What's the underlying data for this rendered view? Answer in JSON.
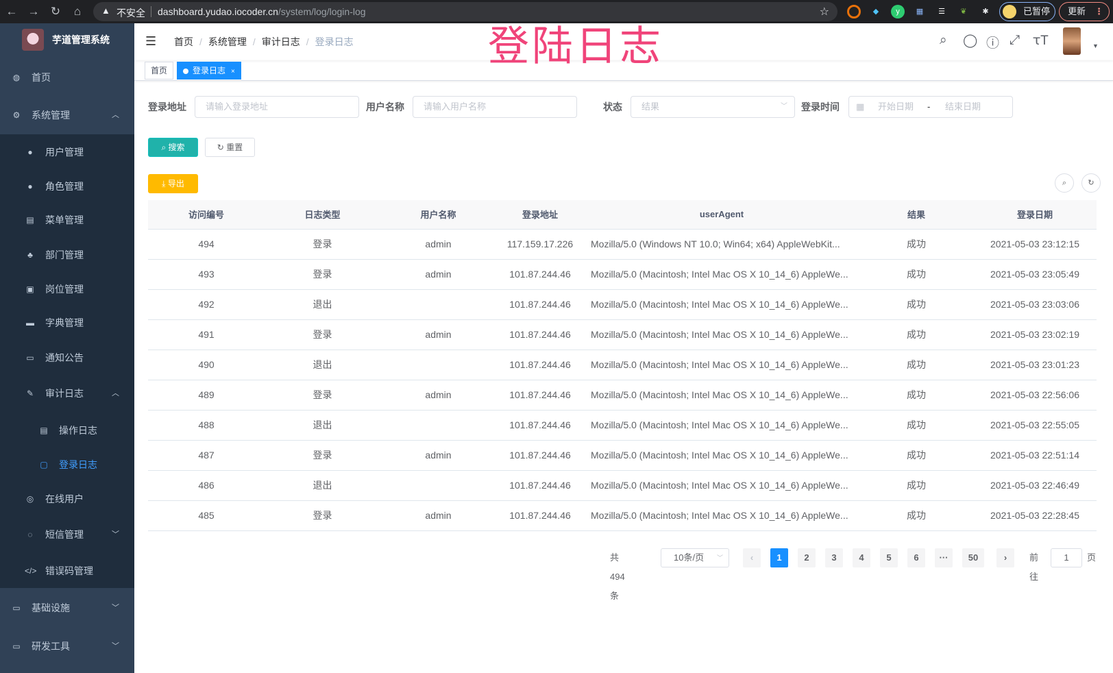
{
  "browser": {
    "insecure_label": "不安全",
    "url_host": "dashboard.yudao.iocoder.cn",
    "url_path": "/system/log/login-log",
    "paused_label": "已暂停",
    "update_label": "更新"
  },
  "app": {
    "title": "芋道管理系统"
  },
  "sidebar": {
    "items": [
      {
        "label": "首页",
        "icon": "dashboard-icon"
      },
      {
        "label": "系统管理",
        "icon": "gear-icon"
      },
      {
        "label": "用户管理",
        "icon": "user-icon"
      },
      {
        "label": "角色管理",
        "icon": "peoples-icon"
      },
      {
        "label": "菜单管理",
        "icon": "tree-table-icon"
      },
      {
        "label": "部门管理",
        "icon": "tree-icon"
      },
      {
        "label": "岗位管理",
        "icon": "post-icon"
      },
      {
        "label": "字典管理",
        "icon": "dict-icon"
      },
      {
        "label": "通知公告",
        "icon": "message-icon"
      },
      {
        "label": "审计日志",
        "icon": "log-icon"
      },
      {
        "label": "操作日志",
        "icon": "form-icon"
      },
      {
        "label": "登录日志",
        "icon": "logininfor-icon"
      },
      {
        "label": "在线用户",
        "icon": "online-icon"
      },
      {
        "label": "短信管理",
        "icon": "validCode-icon"
      },
      {
        "label": "错误码管理",
        "icon": "code-icon"
      },
      {
        "label": "基础设施",
        "icon": "monitor-icon"
      },
      {
        "label": "研发工具",
        "icon": "tool-icon"
      }
    ]
  },
  "breadcrumb": [
    "首页",
    "系统管理",
    "审计日志",
    "登录日志"
  ],
  "overlay_title": "登陆日志",
  "tags": [
    "首页",
    "登录日志"
  ],
  "filters": {
    "address_label": "登录地址",
    "address_placeholder": "请输入登录地址",
    "username_label": "用户名称",
    "username_placeholder": "请输入用户名称",
    "status_label": "状态",
    "status_placeholder": "结果",
    "time_label": "登录时间",
    "start_placeholder": "开始日期",
    "range_sep": "-",
    "end_placeholder": "结束日期"
  },
  "buttons": {
    "search": "搜索",
    "reset": "重置",
    "export": "导出"
  },
  "table": {
    "columns": [
      "访问编号",
      "日志类型",
      "用户名称",
      "登录地址",
      "userAgent",
      "结果",
      "登录日期"
    ],
    "rows": [
      [
        "494",
        "登录",
        "admin",
        "117.159.17.226",
        "Mozilla/5.0 (Windows NT 10.0; Win64; x64) AppleWebKit...",
        "成功",
        "2021-05-03 23:12:15"
      ],
      [
        "493",
        "登录",
        "admin",
        "101.87.244.46",
        "Mozilla/5.0 (Macintosh; Intel Mac OS X 10_14_6) AppleWe...",
        "成功",
        "2021-05-03 23:05:49"
      ],
      [
        "492",
        "退出",
        "",
        "101.87.244.46",
        "Mozilla/5.0 (Macintosh; Intel Mac OS X 10_14_6) AppleWe...",
        "成功",
        "2021-05-03 23:03:06"
      ],
      [
        "491",
        "登录",
        "admin",
        "101.87.244.46",
        "Mozilla/5.0 (Macintosh; Intel Mac OS X 10_14_6) AppleWe...",
        "成功",
        "2021-05-03 23:02:19"
      ],
      [
        "490",
        "退出",
        "",
        "101.87.244.46",
        "Mozilla/5.0 (Macintosh; Intel Mac OS X 10_14_6) AppleWe...",
        "成功",
        "2021-05-03 23:01:23"
      ],
      [
        "489",
        "登录",
        "admin",
        "101.87.244.46",
        "Mozilla/5.0 (Macintosh; Intel Mac OS X 10_14_6) AppleWe...",
        "成功",
        "2021-05-03 22:56:06"
      ],
      [
        "488",
        "退出",
        "",
        "101.87.244.46",
        "Mozilla/5.0 (Macintosh; Intel Mac OS X 10_14_6) AppleWe...",
        "成功",
        "2021-05-03 22:55:05"
      ],
      [
        "487",
        "登录",
        "admin",
        "101.87.244.46",
        "Mozilla/5.0 (Macintosh; Intel Mac OS X 10_14_6) AppleWe...",
        "成功",
        "2021-05-03 22:51:14"
      ],
      [
        "486",
        "退出",
        "",
        "101.87.244.46",
        "Mozilla/5.0 (Macintosh; Intel Mac OS X 10_14_6) AppleWe...",
        "成功",
        "2021-05-03 22:46:49"
      ],
      [
        "485",
        "登录",
        "admin",
        "101.87.244.46",
        "Mozilla/5.0 (Macintosh; Intel Mac OS X 10_14_6) AppleWe...",
        "成功",
        "2021-05-03 22:28:45"
      ]
    ]
  },
  "pagination": {
    "total_label": "共 494 条",
    "page_size": "10条/页",
    "pages": [
      "1",
      "2",
      "3",
      "4",
      "5",
      "6",
      "···",
      "50"
    ],
    "current": "1",
    "goto_prefix": "前往",
    "goto_value": "1",
    "goto_suffix": "页"
  },
  "colors": {
    "sidebar": "#304156",
    "accent": "#1890ff",
    "search": "#20b2aa",
    "export": "#ffba00",
    "overlay_title": "#f0447a"
  }
}
